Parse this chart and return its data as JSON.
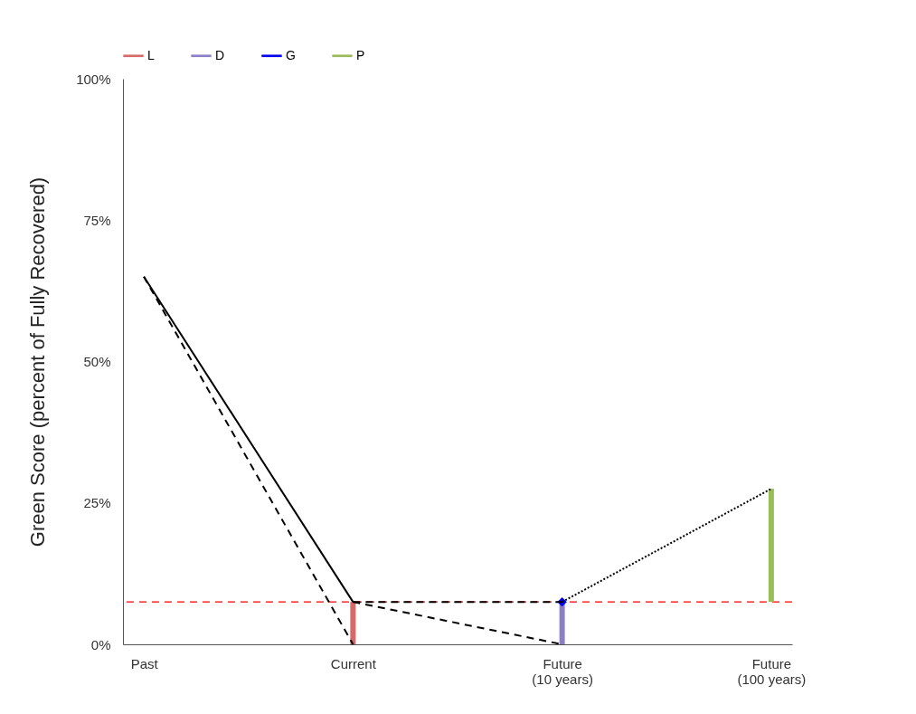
{
  "chart_data": {
    "type": "line",
    "ylabel": "Green Score (percent of Fully Recovered)",
    "categories": [
      "Past",
      "Current",
      "Future\n(10 years)",
      "Future\n(100 years)"
    ],
    "ylim": [
      0,
      100
    ],
    "yticks": [
      {
        "value": 0,
        "label": "0%"
      },
      {
        "value": 25,
        "label": "25%"
      },
      {
        "value": 50,
        "label": "50%"
      },
      {
        "value": 75,
        "label": "75%"
      },
      {
        "value": 100,
        "label": "100%"
      }
    ],
    "grid": false,
    "legend": "top",
    "marker": "none",
    "series": [
      {
        "color": "#000000",
        "line_style": "solid",
        "values": [
          65,
          7.5,
          null,
          null
        ]
      },
      {
        "color": "#000000",
        "line_style": "dashed",
        "values": [
          65,
          0,
          null,
          null
        ]
      },
      {
        "color": "#000000",
        "line_style": "dashed",
        "values": [
          null,
          7.5,
          7.5,
          null
        ]
      },
      {
        "color": "#000000",
        "line_style": "dashed",
        "values": [
          null,
          7.5,
          0,
          null
        ]
      },
      {
        "color": "#000000",
        "line_style": "dotted",
        "values": [
          null,
          null,
          7.5,
          27.5
        ]
      },
      {
        "type": "bar",
        "name": "L",
        "color": "#d46a6a",
        "values": [
          null,
          7.5,
          null,
          null
        ]
      },
      {
        "type": "bar",
        "name": "D",
        "color": "#8c7fc8",
        "values": [
          null,
          null,
          7.5,
          null
        ]
      },
      {
        "type": "scatter",
        "name": "G",
        "color": "#0000ee",
        "marker": "diamond",
        "values": [
          null,
          null,
          7.5,
          null
        ]
      },
      {
        "type": "bar",
        "name": "P",
        "color": "#9bbb59",
        "base": [
          null,
          null,
          null,
          7.5
        ],
        "values": [
          null,
          null,
          null,
          20
        ]
      }
    ],
    "ref_lines": [
      {
        "axis": "y",
        "value": 7.5,
        "color": "#ff0000",
        "line_style": "dashed"
      }
    ]
  }
}
